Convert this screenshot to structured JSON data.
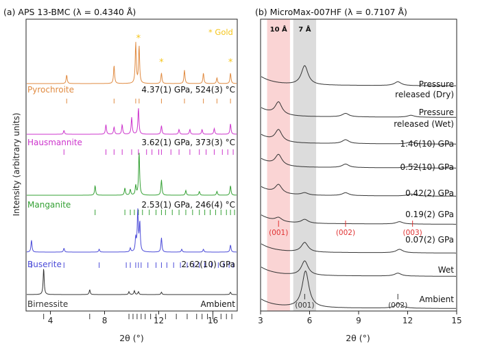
{
  "chart_data": [
    {
      "panel": "a",
      "type": "line",
      "title": "(a) APS 13-BMC (λ = 0.4340 Å)",
      "xlabel": "2θ (°)",
      "ylabel": "Intensity (arbitrary units)",
      "xlim": [
        2.2,
        17.8
      ],
      "xticks": [
        4,
        8,
        12,
        16
      ],
      "gold_label": "* Gold",
      "gold_x": [
        10.5,
        12.2,
        17.3
      ],
      "series": [
        {
          "name": "Pyrochroite",
          "condition": "4.37(1) GPa, 524(3) °C",
          "color": "#e08a40",
          "peaks": [
            [
              5.2,
              0.18
            ],
            [
              8.7,
              0.38
            ],
            [
              10.3,
              0.85
            ],
            [
              10.55,
              0.78
            ],
            [
              12.2,
              0.22
            ],
            [
              13.9,
              0.28
            ],
            [
              15.3,
              0.22
            ],
            [
              16.3,
              0.12
            ],
            [
              17.3,
              0.22
            ]
          ],
          "ticks": [
            5.2,
            8.7,
            10.3,
            10.55,
            12.2,
            13.9,
            15.3,
            16.3,
            17.3
          ]
        },
        {
          "name": "Hausmannite",
          "condition": "3.62(1) GPa, 373(3) °C",
          "color": "#cc33cc",
          "peaks": [
            [
              5.0,
              0.08
            ],
            [
              8.1,
              0.2
            ],
            [
              8.7,
              0.15
            ],
            [
              9.3,
              0.2
            ],
            [
              10.0,
              0.35
            ],
            [
              10.5,
              0.55
            ],
            [
              12.2,
              0.18
            ],
            [
              13.5,
              0.1
            ],
            [
              14.3,
              0.1
            ],
            [
              15.2,
              0.1
            ],
            [
              16.1,
              0.12
            ],
            [
              17.3,
              0.22
            ]
          ],
          "ticks": [
            5.0,
            8.1,
            8.7,
            9.3,
            10.0,
            10.5,
            11.1,
            11.5,
            12.0,
            12.2,
            12.9,
            13.5,
            14.3,
            15.0,
            15.5,
            16.1,
            16.7,
            17.1,
            17.5
          ]
        },
        {
          "name": "Manganite",
          "condition": "2.53(1) GPa, 246(4) °C",
          "color": "#33a033",
          "peaks": [
            [
              7.3,
              0.2
            ],
            [
              9.5,
              0.15
            ],
            [
              9.9,
              0.12
            ],
            [
              10.3,
              0.2
            ],
            [
              10.55,
              0.9
            ],
            [
              12.2,
              0.32
            ],
            [
              14.0,
              0.1
            ],
            [
              15.0,
              0.08
            ],
            [
              16.3,
              0.08
            ],
            [
              17.3,
              0.2
            ]
          ],
          "ticks": [
            7.3,
            9.5,
            9.9,
            10.2,
            10.5,
            10.8,
            11.3,
            11.8,
            12.2,
            12.5,
            13.0,
            13.5,
            14.0,
            14.5,
            15.0,
            15.4,
            15.8,
            16.2,
            16.6,
            17.0,
            17.3,
            17.6
          ]
        },
        {
          "name": "Buserite",
          "condition": "2.62(10) GPa",
          "color": "#4a4ad8",
          "peaks": [
            [
              2.6,
              0.25
            ],
            [
              5.0,
              0.08
            ],
            [
              7.6,
              0.06
            ],
            [
              9.9,
              0.08
            ],
            [
              10.3,
              0.28
            ],
            [
              10.45,
              0.85
            ],
            [
              10.6,
              0.6
            ],
            [
              12.2,
              0.3
            ],
            [
              13.7,
              0.06
            ],
            [
              15.3,
              0.06
            ],
            [
              17.3,
              0.15
            ]
          ],
          "ticks": [
            2.6,
            5.0,
            7.6,
            9.6,
            9.9,
            10.3,
            10.5,
            10.7,
            11.2,
            11.8,
            12.2,
            12.6,
            13.1,
            13.6,
            14.1,
            14.6,
            15.0,
            15.4,
            15.9,
            16.4,
            16.8,
            17.2,
            17.5
          ]
        },
        {
          "name": "Birnessite",
          "condition": "Ambient",
          "color": "#333333",
          "peaks": [
            [
              3.5,
              0.55
            ],
            [
              6.9,
              0.1
            ],
            [
              9.8,
              0.06
            ],
            [
              10.2,
              0.08
            ],
            [
              10.5,
              0.06
            ],
            [
              12.2,
              0.05
            ],
            [
              17.3,
              0.05
            ]
          ],
          "ticks": [
            3.5,
            6.9,
            9.8,
            10.1,
            10.4,
            10.7,
            11.0,
            11.4,
            11.8,
            12.5,
            13.3,
            14.1,
            14.8,
            15.2,
            15.6,
            16.0,
            16.6,
            17.0,
            17.4
          ]
        }
      ]
    },
    {
      "panel": "b",
      "type": "line",
      "title": "(b) MicroMax-007HF (λ = 0.7107 Å)",
      "xlabel": "2θ (°)",
      "xlim": [
        3,
        15
      ],
      "xticks": [
        3,
        6,
        9,
        12,
        15
      ],
      "bands": [
        {
          "label": "10 Å",
          "x": [
            3.4,
            4.8
          ],
          "color": "#fad4d4"
        },
        {
          "label": "7 Å",
          "x": [
            5.0,
            6.4
          ],
          "color": "#dcdcdc"
        }
      ],
      "series": [
        {
          "name": "Pressure released (Dry)",
          "peaks": [
            [
              5.7,
              1.0
            ],
            [
              11.4,
              0.2
            ]
          ]
        },
        {
          "name": "Pressure released (Wet)",
          "peaks": [
            [
              4.1,
              0.65
            ],
            [
              8.2,
              0.18
            ],
            [
              12.2,
              0.1
            ]
          ]
        },
        {
          "name": "1.46(10) GPa",
          "peaks": [
            [
              4.1,
              0.6
            ],
            [
              8.2,
              0.2
            ],
            [
              12.2,
              0.1
            ]
          ]
        },
        {
          "name": "0.52(10) GPa",
          "peaks": [
            [
              4.1,
              0.55
            ],
            [
              8.2,
              0.18
            ],
            [
              12.2,
              0.1
            ]
          ]
        },
        {
          "name": "0.42(2) GPa",
          "peaks": [
            [
              4.1,
              0.45
            ],
            [
              5.7,
              0.12
            ],
            [
              8.2,
              0.15
            ],
            [
              12.2,
              0.1
            ]
          ]
        },
        {
          "name": "0.19(2) GPa",
          "peaks": [
            [
              4.1,
              0.2
            ],
            [
              5.7,
              0.2
            ],
            [
              11.5,
              0.12
            ]
          ]
        },
        {
          "name": "0.07(2) GPa",
          "peaks": [
            [
              5.7,
              0.5
            ],
            [
              11.5,
              0.18
            ]
          ]
        },
        {
          "name": "Wet",
          "peaks": [
            [
              5.7,
              0.75
            ],
            [
              11.4,
              0.15
            ]
          ]
        },
        {
          "name": "Ambient",
          "peaks": [
            [
              5.75,
              1.9
            ],
            [
              11.45,
              0.25
            ]
          ]
        }
      ],
      "red_ticks": [
        {
          "label": "(001)",
          "x": 4.1
        },
        {
          "label": "(002)",
          "x": 8.2
        },
        {
          "label": "(003)",
          "x": 12.3
        }
      ],
      "black_ticks": [
        {
          "label": "(001)",
          "x": 5.7
        },
        {
          "label": "(002)",
          "x": 11.4
        }
      ]
    }
  ]
}
